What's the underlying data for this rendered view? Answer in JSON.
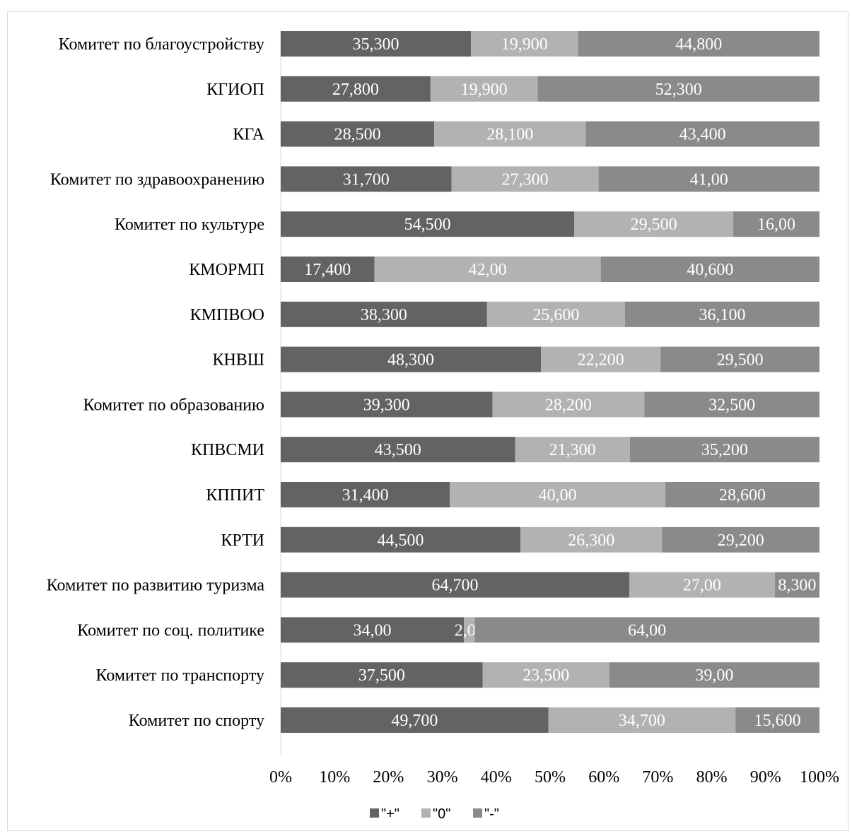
{
  "chart_data": {
    "type": "bar",
    "orientation": "horizontal",
    "stacked": "percent",
    "categories": [
      "Комитет по благоустройству",
      "КГИОП",
      "КГА",
      "Комитет по здравоохранению",
      "Комитет по культуре",
      "КМОРМП",
      "КМПВОО",
      "КНВШ",
      "Комитет по образованию",
      "КПВСМИ",
      "КППИТ",
      "КРТИ",
      "Комитет по развитию туризма",
      "Комитет по соц. политике",
      "Комитет по транспорту",
      "Комитет по спорту"
    ],
    "series": [
      {
        "name": "\"+\"",
        "color": "#636363",
        "values": [
          35.3,
          27.8,
          28.5,
          31.7,
          54.5,
          17.4,
          38.3,
          48.3,
          39.3,
          43.5,
          31.4,
          44.5,
          64.7,
          34.0,
          37.5,
          49.7
        ],
        "labels": [
          "35,300",
          "27,800",
          "28,500",
          "31,700",
          "54,500",
          "17,400",
          "38,300",
          "48,300",
          "39,300",
          "43,500",
          "31,400",
          "44,500",
          "64,700",
          "34,00",
          "37,500",
          "49,700"
        ]
      },
      {
        "name": "\"0\"",
        "color": "#b2b2b2",
        "values": [
          19.9,
          19.9,
          28.1,
          27.3,
          29.5,
          42.0,
          25.6,
          22.2,
          28.2,
          21.3,
          40.0,
          26.3,
          27.0,
          2.0,
          23.5,
          34.7
        ],
        "labels": [
          "19,900",
          "19,900",
          "28,100",
          "27,300",
          "29,500",
          "42,00",
          "25,600",
          "22,200",
          "28,200",
          "21,300",
          "40,00",
          "26,300",
          "27,00",
          "2,00",
          "23,500",
          "34,700"
        ]
      },
      {
        "name": "\"-\"",
        "color": "#8a8a8a",
        "values": [
          44.8,
          52.3,
          43.4,
          41.0,
          16.0,
          40.6,
          36.1,
          29.5,
          32.5,
          35.2,
          28.6,
          29.2,
          8.3,
          64.0,
          39.0,
          15.6
        ],
        "labels": [
          "44,800",
          "52,300",
          "43,400",
          "41,00",
          "16,00",
          "40,600",
          "36,100",
          "29,500",
          "32,500",
          "35,200",
          "28,600",
          "29,200",
          "8,300",
          "64,00",
          "39,00",
          "15,600"
        ]
      }
    ],
    "x_ticks": [
      "0%",
      "10%",
      "20%",
      "30%",
      "40%",
      "50%",
      "60%",
      "70%",
      "80%",
      "90%",
      "100%"
    ],
    "xlim": [
      0,
      100
    ],
    "grid": false,
    "legend": "bottom"
  }
}
